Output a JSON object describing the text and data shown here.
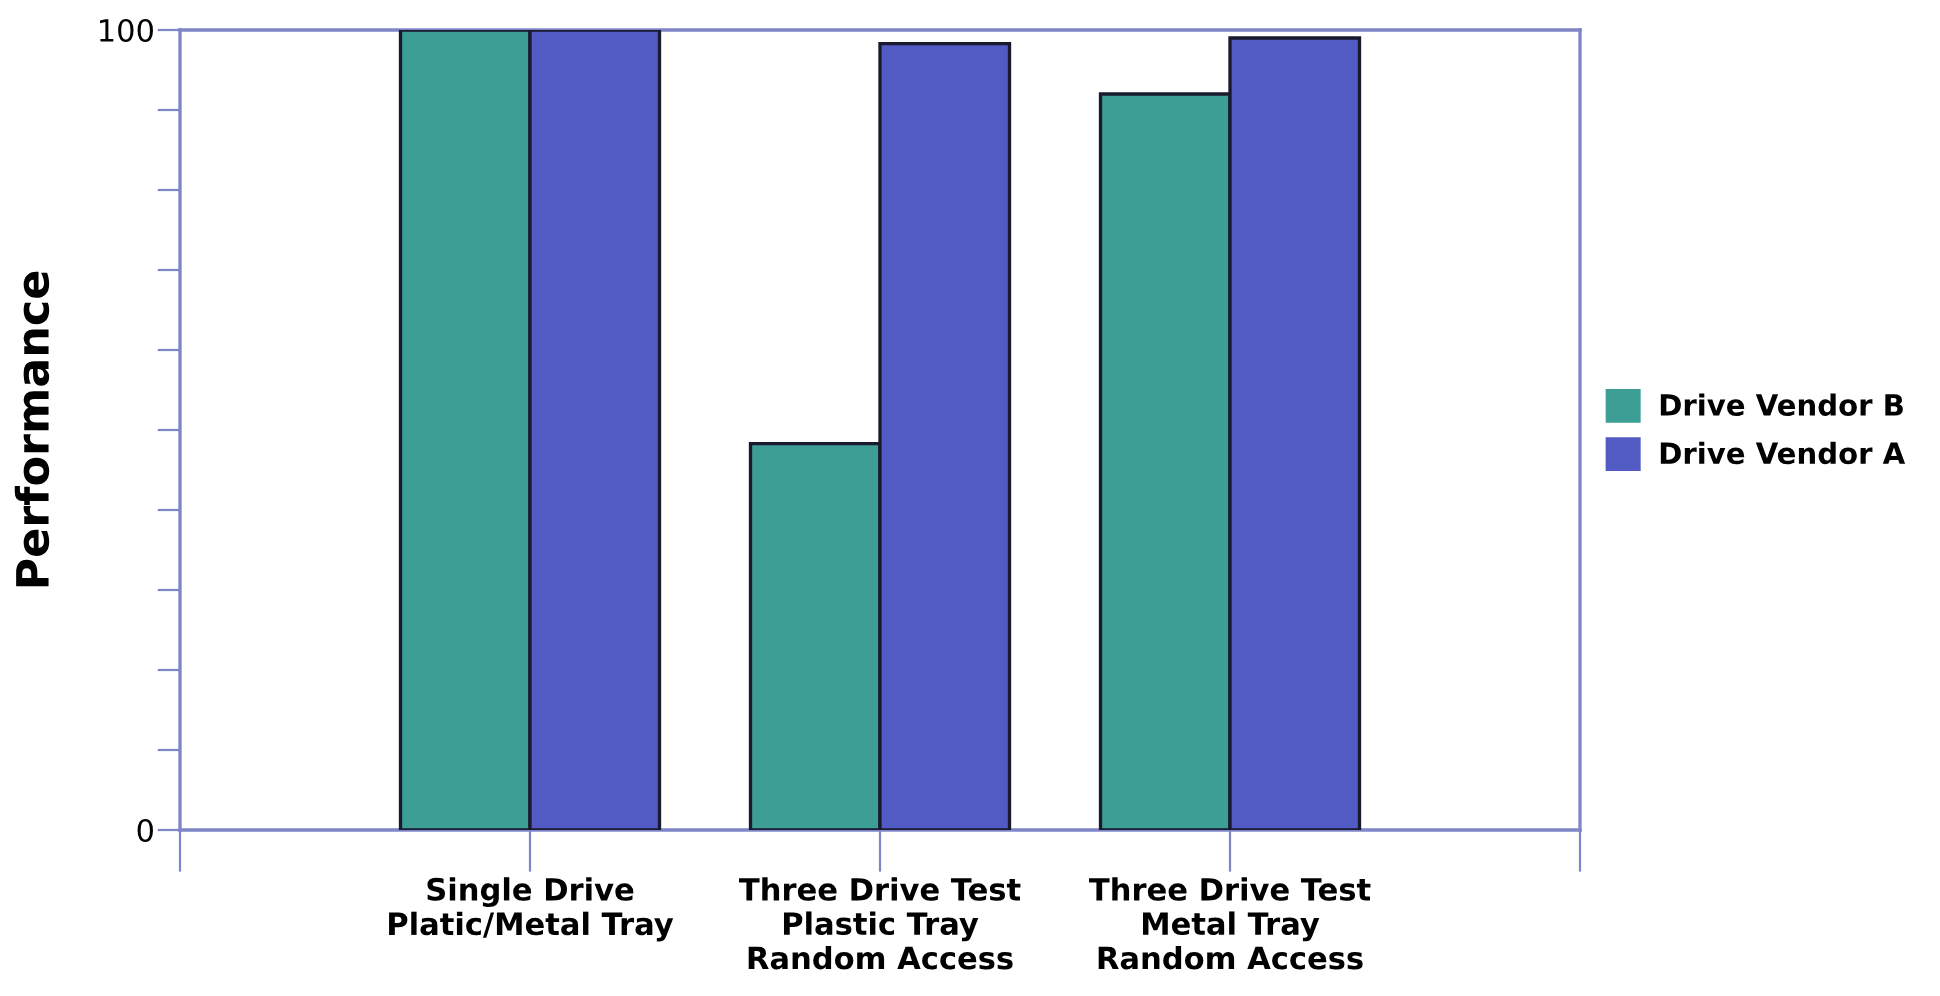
{
  "chart_data": {
    "type": "bar",
    "ylabel": "Performance",
    "categories": [
      "Single Drive\nPlatic/Metal Tray",
      "Three Drive Test\nPlastic Tray\nRandom Access",
      "Three Drive Test\nMetal Tray\nRandom Access"
    ],
    "series": [
      {
        "name": "Drive Vendor B",
        "color": "#3d9e96",
        "values": [
          100,
          48.3,
          92
        ]
      },
      {
        "name": "Drive Vendor A",
        "color": "#525bc4",
        "values": [
          100,
          98.3,
          99
        ]
      }
    ],
    "ylim": [
      0,
      100
    ],
    "yticks": [
      0,
      {
        "value": 10,
        "label": null
      },
      {
        "value": 20,
        "label": null
      },
      {
        "value": 30,
        "label": null
      },
      {
        "value": 40,
        "label": null
      },
      {
        "value": 50,
        "label": null
      },
      {
        "value": 60,
        "label": null
      },
      {
        "value": 70,
        "label": null
      },
      {
        "value": 80,
        "label": null
      },
      {
        "value": 90,
        "label": null
      },
      100
    ],
    "grid": false,
    "legend": "right"
  }
}
